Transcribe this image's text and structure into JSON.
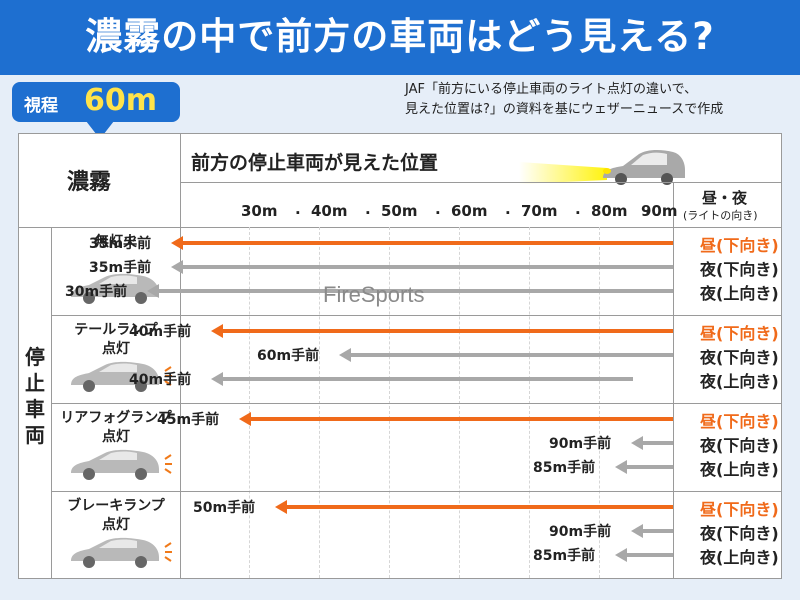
{
  "header": {
    "title": "濃霧の中で前方の車両はどう見える?"
  },
  "badge": {
    "label": "視程",
    "value": "60m"
  },
  "source_note": [
    "JAF「前方にいる停止車両のライト点灯の違いで、",
    "見えた位置は?」の資料を基にウェザーニュースで作成"
  ],
  "table": {
    "corner_label": "濃霧",
    "chart_header": "前方の停止車両が見えた位置",
    "dir_header": "昼・夜",
    "dir_subheader": "(ライトの向き)",
    "side_label": "停止車両"
  },
  "watermark": "FireSports",
  "colors": {
    "header_blue": "#1e6fd0",
    "day": "#f06a1a",
    "night": "#a8a8a8",
    "lamp": "#f07a1a",
    "car_grey": "#b9b9b9"
  },
  "chart_data": {
    "type": "bar",
    "title": "前方の停止車両が見えた位置",
    "x_ticks": [
      "30m",
      "40m",
      "50m",
      "60m",
      "70m",
      "80m",
      "90m"
    ],
    "xlim": [
      20,
      95
    ],
    "x_unit": "m",
    "groups": [
      {
        "name": "無灯火",
        "icon": "car-icon",
        "lamp": false,
        "rows": [
          {
            "label": "35m手前",
            "direction": "昼(下向き)",
            "period": "day",
            "value": 35
          },
          {
            "label": "35m手前",
            "direction": "夜(下向き)",
            "period": "night",
            "value": 35
          },
          {
            "label": "30m手前",
            "direction": "夜(上向き)",
            "period": "night",
            "value": 30
          }
        ]
      },
      {
        "name": "テールランプ 点灯",
        "icon": "car-tail-lamp-icon",
        "lamp": true,
        "rows": [
          {
            "label": "40m手前",
            "direction": "昼(下向き)",
            "period": "day",
            "value": 40
          },
          {
            "label": "60m手前",
            "direction": "夜(下向き)",
            "period": "night",
            "value": 60
          },
          {
            "label": "40m手前",
            "direction": "夜(上向き)",
            "period": "night",
            "value": 40
          }
        ]
      },
      {
        "name": "リアフォグランプ 点灯",
        "icon": "car-rear-fog-lamp-icon",
        "lamp": true,
        "rows": [
          {
            "label": "45m手前",
            "direction": "昼(下向き)",
            "period": "day",
            "value": 45
          },
          {
            "label": "90m手前",
            "direction": "夜(下向き)",
            "period": "night",
            "value": 90
          },
          {
            "label": "85m手前",
            "direction": "夜(上向き)",
            "period": "night",
            "value": 85
          }
        ]
      },
      {
        "name": "ブレーキランプ 点灯",
        "icon": "car-brake-lamp-icon",
        "lamp": true,
        "rows": [
          {
            "label": "50m手前",
            "direction": "昼(下向き)",
            "period": "day",
            "value": 50
          },
          {
            "label": "90m手前",
            "direction": "夜(下向き)",
            "period": "night",
            "value": 90
          },
          {
            "label": "85m手前",
            "direction": "夜(上向き)",
            "period": "night",
            "value": 85
          }
        ]
      }
    ]
  }
}
